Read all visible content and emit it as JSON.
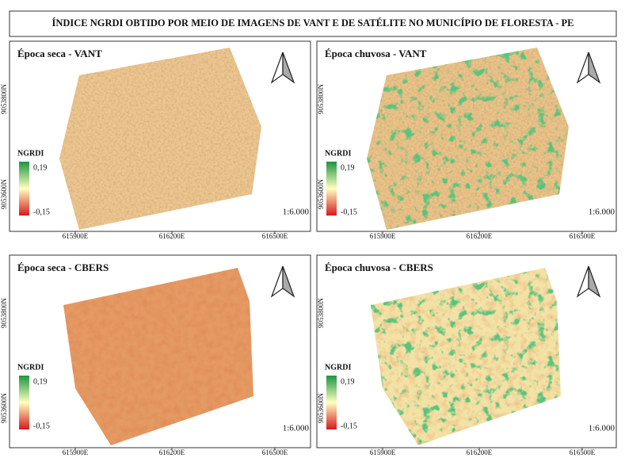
{
  "title": "ÍNDICE NGRDI OBTIDO POR MEIO DE IMAGENS DE VANT E DE SATÉLITE NO MUNICÍPIO DE FLORESTA - PE",
  "panels": [
    {
      "title": "Época seca - VANT",
      "legend_title": "NGRDI",
      "legend_max": "0,19",
      "legend_min": "-0,15",
      "scale": "1:6.000",
      "x_ticks": [
        "615900E",
        "616200E",
        "616500E"
      ],
      "y_ticks": [
        "9053800N",
        "9053600N"
      ]
    },
    {
      "title": "Época chuvosa - VANT",
      "legend_title": "NGRDI",
      "legend_max": "0,19",
      "legend_min": "-0,15",
      "scale": "1:6.000",
      "x_ticks": [
        "615900E",
        "616200E",
        "616500E"
      ],
      "y_ticks": [
        "9053800N",
        "9053600N"
      ]
    },
    {
      "title": "Época seca - CBERS",
      "legend_title": "NGRDI",
      "legend_max": "0,19",
      "legend_min": "-0,15",
      "scale": "1:6.000",
      "x_ticks": [
        "615900E",
        "616200E",
        "616500E"
      ],
      "y_ticks": [
        "9053800N",
        "9053600N"
      ]
    },
    {
      "title": "Época chuvosa - CBERS",
      "legend_title": "NGRDI",
      "legend_max": "0,19",
      "legend_min": "-0,15",
      "scale": "1:6.000",
      "x_ticks": [
        "615900E",
        "616200E",
        "616500E"
      ],
      "y_ticks": [
        "9053800N",
        "9053600N"
      ]
    }
  ]
}
